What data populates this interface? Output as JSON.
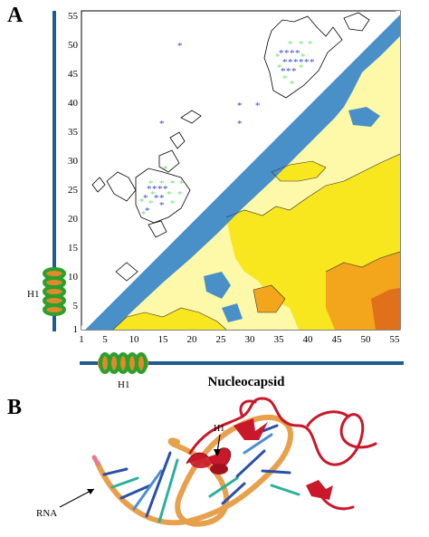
{
  "panel_a_label": "A",
  "panel_b_label": "B",
  "axis_ticks": [
    "1",
    "5",
    "10",
    "15",
    "20",
    "25",
    "30",
    "35",
    "40",
    "45",
    "50",
    "55"
  ],
  "x_axis_title": "Nucleocapsid",
  "helix_label_left": "H1",
  "helix_label_bottom": "H1",
  "structure_helix_label": "H1",
  "rna_label": "RNA",
  "colors": {
    "blue_band": "#4a90c8",
    "light_yellow": "#fdf9a8",
    "yellow": "#f8e61f",
    "orange": "#f3a51b",
    "dark_orange": "#e0701a",
    "axis_blue": "#1f5b8e",
    "marker_blue": "#3347c9",
    "marker_green": "#6fe36f",
    "helix_green": "#2ca02c",
    "helix_orange": "#e08a2c",
    "protein_red": "#c8182a",
    "rna_orange": "#e7a04b"
  }
}
